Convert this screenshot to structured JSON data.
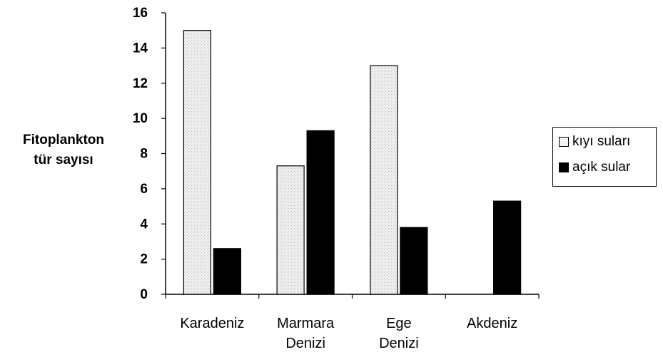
{
  "chart_data": {
    "type": "bar",
    "categories": [
      [
        "Karadeniz"
      ],
      [
        "Marmara",
        "Denizi"
      ],
      [
        "Ege",
        "Denizi"
      ],
      [
        "Akdeniz"
      ]
    ],
    "series": [
      {
        "name": "kıyı suları",
        "values": [
          15,
          7.3,
          13,
          0
        ],
        "color": "#e4e4e4"
      },
      {
        "name": "açık sular",
        "values": [
          2.6,
          9.3,
          3.8,
          5.3
        ],
        "color": "#000000"
      }
    ],
    "ylabel": [
      "Fitoplankton",
      "tür sayısı"
    ],
    "ylim": [
      0,
      16
    ],
    "yticks": [
      0,
      2,
      4,
      6,
      8,
      10,
      12,
      14,
      16
    ],
    "grid": false,
    "legend_position": "right"
  }
}
